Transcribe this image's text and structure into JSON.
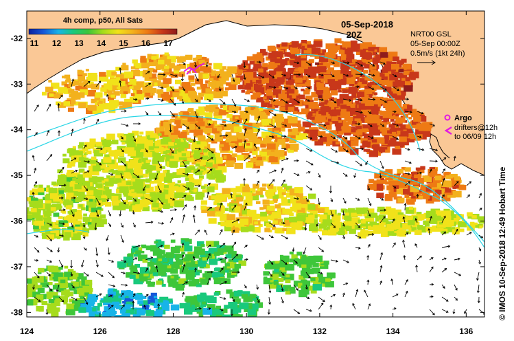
{
  "colorbar": {
    "title": "4h comp, p50, All Sats",
    "ticks": [
      "11",
      "12",
      "13",
      "14",
      "15",
      "16",
      "17"
    ],
    "stops": [
      "#0a1f9e",
      "#1658d8",
      "#18b4e8",
      "#19c97c",
      "#3ec63a",
      "#a6dc1c",
      "#f1e21a",
      "#f3b11d",
      "#ee7a14",
      "#c8371a",
      "#8e1c1c"
    ]
  },
  "header": {
    "date": "05-Sep-2018",
    "time": "20Z"
  },
  "info": {
    "line1": "NRT00 GSL",
    "line2": "05-Sep 00:00Z",
    "line3": "0.5m/s (1kt 24h)"
  },
  "legend": {
    "argo": "Argo",
    "drifters_line1": "drifters@12h",
    "drifters_line2": "to 06/09 12h",
    "argo_color": "#e21ce0"
  },
  "credit": "© IMOS 10-Sep-2018 12:49 Hobart Time",
  "axes": {
    "x_ticks": [
      "124",
      "126",
      "128",
      "130",
      "132",
      "134",
      "136"
    ],
    "y_ticks": [
      "-32",
      "-33",
      "-34",
      "-35",
      "-36",
      "-37",
      "-38"
    ],
    "lon_range": [
      124,
      136.5
    ],
    "lat_range": [
      -38.1,
      -31.4
    ]
  },
  "colors": {
    "land": "#fac896",
    "coastline": "#000000",
    "bathymetry_contour": "#2ad6e6",
    "current_arrow": "#000000"
  }
}
